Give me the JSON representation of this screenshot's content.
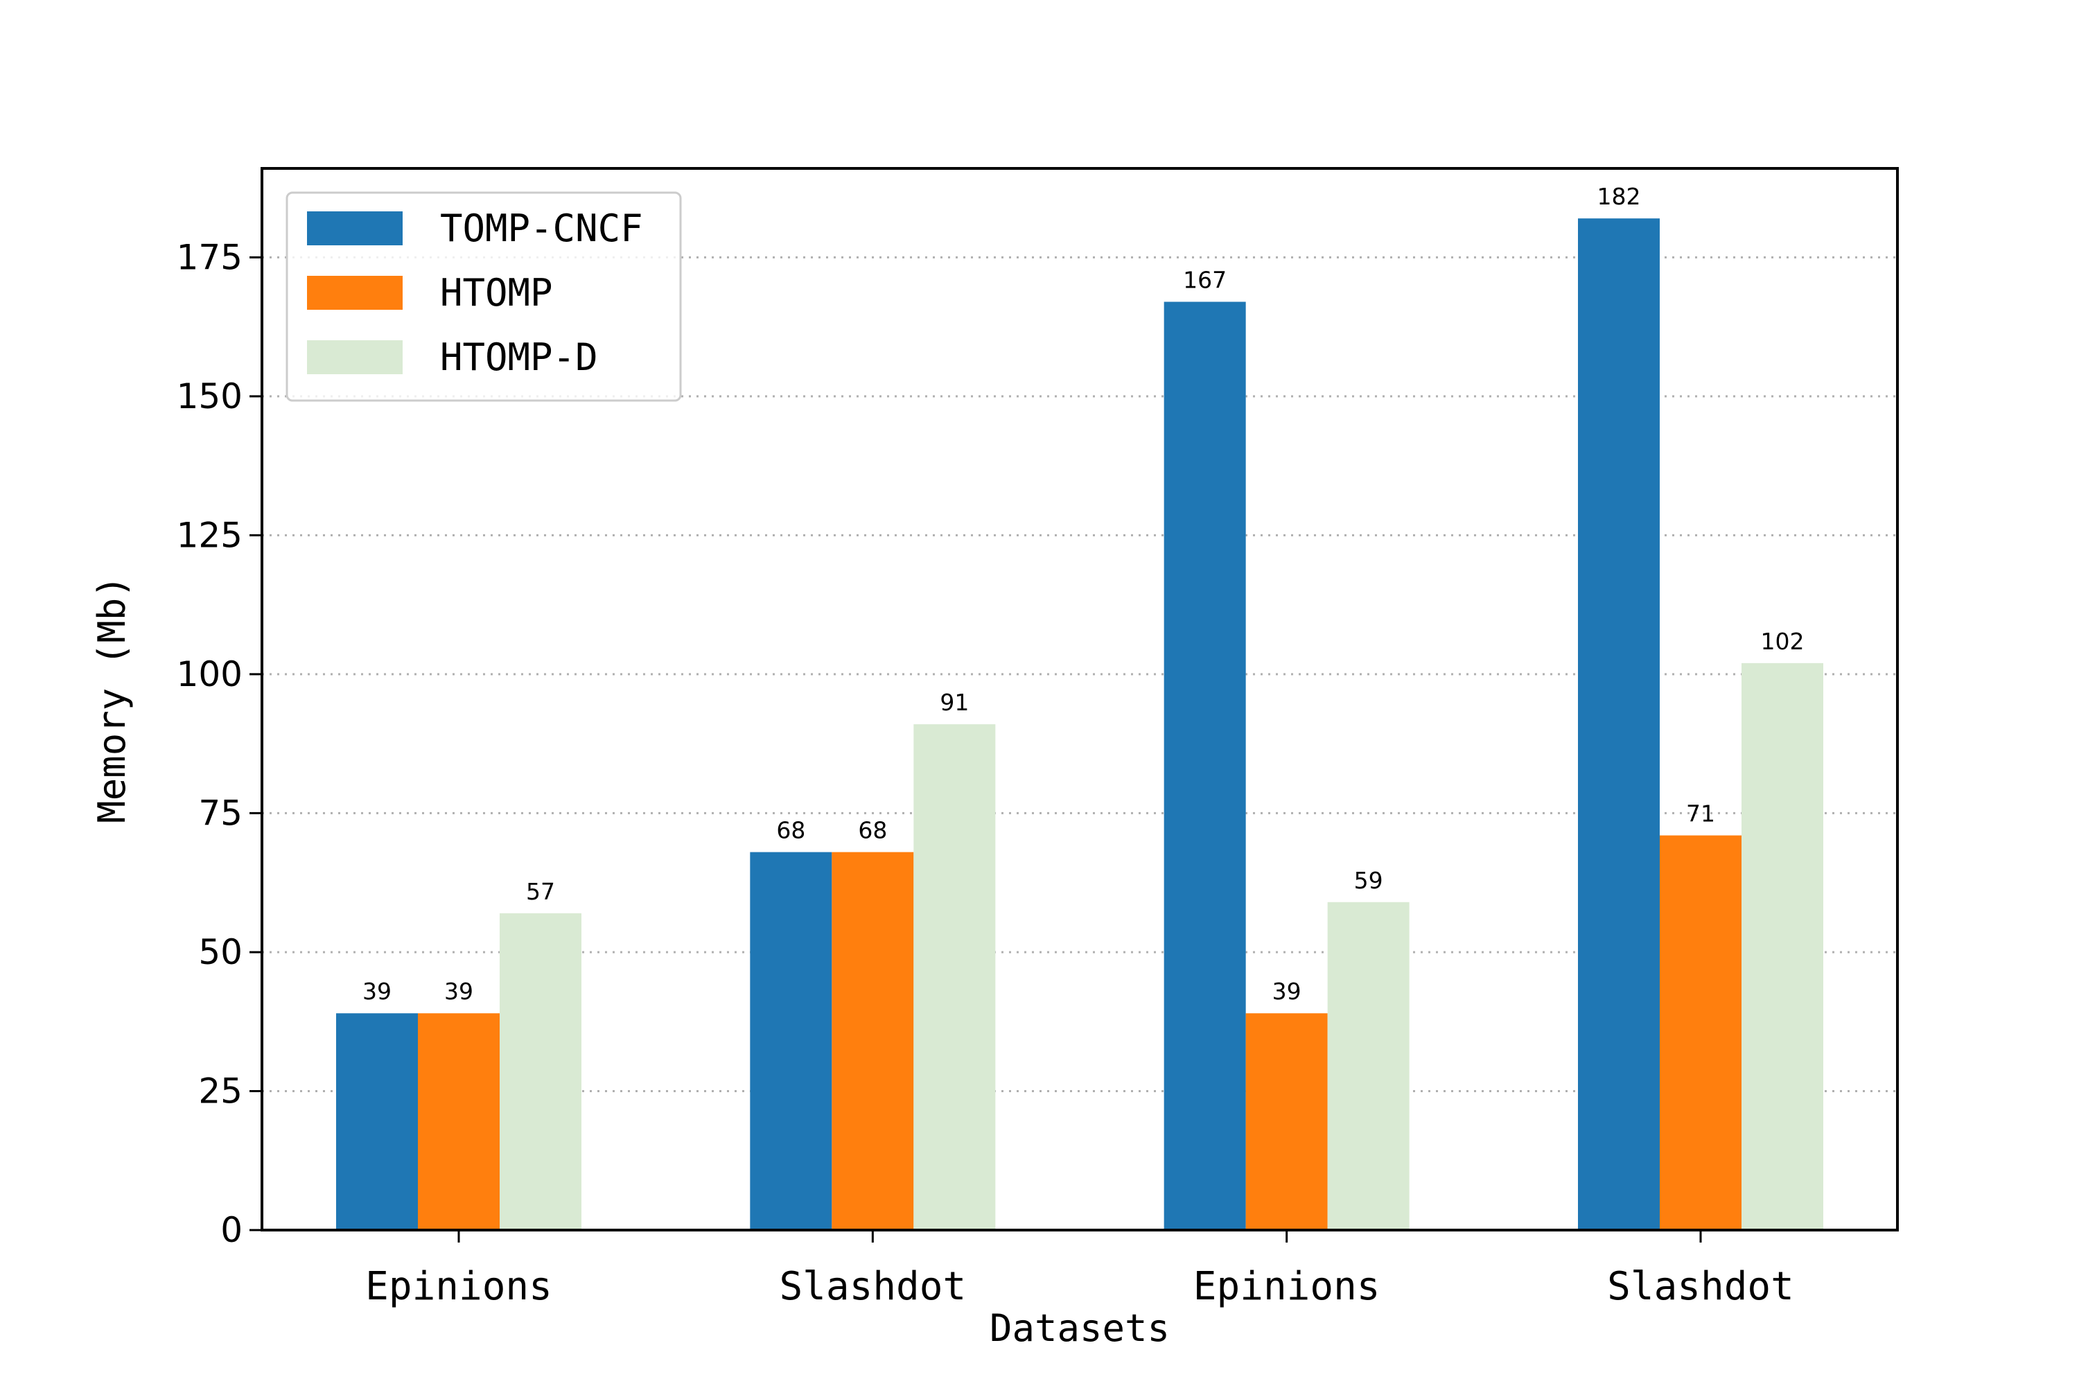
{
  "chart_data": {
    "type": "bar",
    "categories": [
      "Epinions",
      "Slashdot",
      "Epinions",
      "Slashdot"
    ],
    "series": [
      {
        "name": "TOMP-CNCF",
        "values": [
          39,
          68,
          167,
          182
        ],
        "color": "#1f77b4"
      },
      {
        "name": "HTOMP",
        "values": [
          39,
          68,
          39,
          71
        ],
        "color": "#ff7f0e"
      },
      {
        "name": "HTOMP-D",
        "values": [
          57,
          91,
          59,
          102
        ],
        "color": "#d9ead3"
      }
    ],
    "xlabel": "Datasets",
    "ylabel": "Memory (Mb)",
    "ylim": [
      0,
      191
    ],
    "yticks": [
      0,
      25,
      50,
      75,
      100,
      125,
      150,
      175
    ],
    "grid": "y-dotted",
    "legend_position": "top-left"
  }
}
